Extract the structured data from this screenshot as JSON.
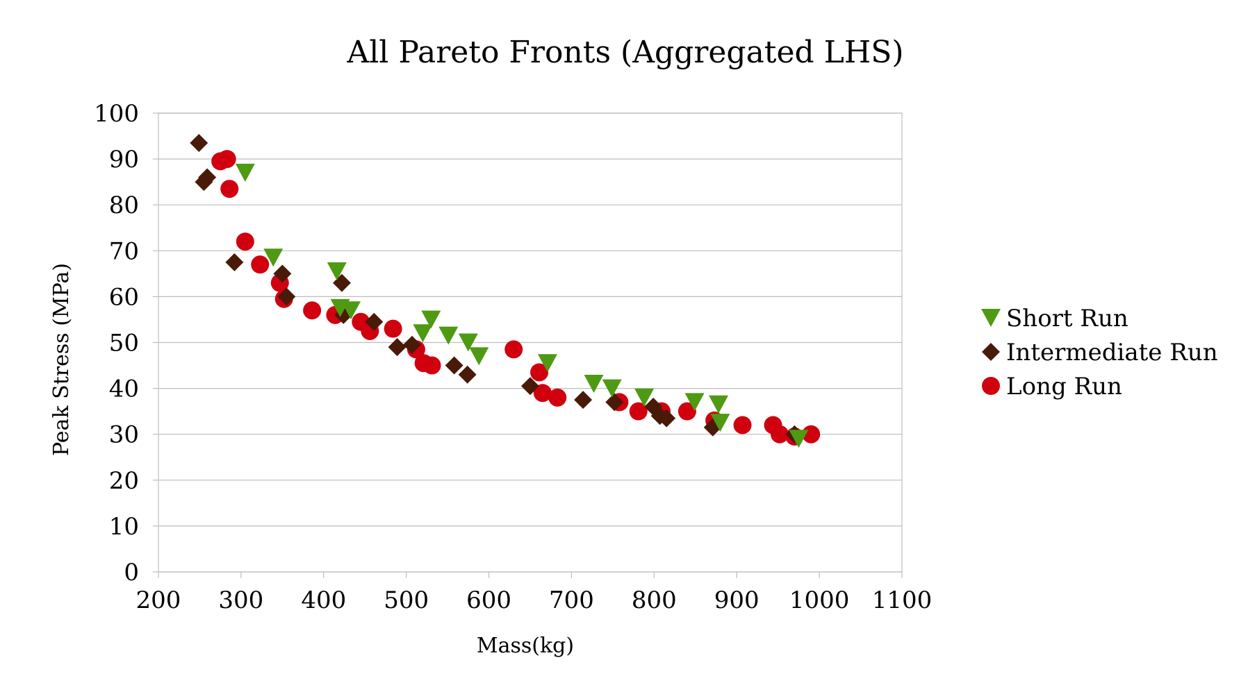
{
  "chart_data": {
    "type": "scatter",
    "title": "All Pareto Fronts (Aggregated LHS)",
    "xlabel": "Mass(kg)",
    "ylabel": "Peak Stress (MPa)",
    "xlim": [
      200,
      1100
    ],
    "ylim": [
      0,
      100
    ],
    "xticks": [
      200,
      300,
      400,
      500,
      600,
      700,
      800,
      900,
      1000,
      1100
    ],
    "yticks": [
      0,
      10,
      20,
      30,
      40,
      50,
      60,
      70,
      80,
      90,
      100
    ],
    "grid": true,
    "legend_position": "right",
    "series": [
      {
        "name": "Short Run",
        "marker": "triangle-down",
        "color": "#4e9a12",
        "points": [
          [
            305,
            87
          ],
          [
            339,
            68.5
          ],
          [
            416,
            65.5
          ],
          [
            420,
            57.5
          ],
          [
            433,
            57
          ],
          [
            520,
            52
          ],
          [
            530,
            55
          ],
          [
            551,
            51.5
          ],
          [
            575,
            50
          ],
          [
            588,
            47
          ],
          [
            671,
            45.5
          ],
          [
            727,
            41
          ],
          [
            749,
            40
          ],
          [
            788,
            38
          ],
          [
            849,
            37
          ],
          [
            878,
            36.5
          ],
          [
            880,
            32.5
          ],
          [
            975,
            29
          ]
        ]
      },
      {
        "name": "Intermediate Run",
        "marker": "diamond",
        "color": "#4a1a08",
        "points": [
          [
            249,
            93.5
          ],
          [
            255,
            85
          ],
          [
            259,
            86
          ],
          [
            292,
            67.5
          ],
          [
            350,
            65
          ],
          [
            355,
            60
          ],
          [
            422,
            63
          ],
          [
            424,
            56
          ],
          [
            461,
            54.5
          ],
          [
            489,
            49
          ],
          [
            507,
            49.5
          ],
          [
            558,
            45
          ],
          [
            574,
            43
          ],
          [
            650,
            40.5
          ],
          [
            714,
            37.5
          ],
          [
            752,
            37
          ],
          [
            799,
            36
          ],
          [
            807,
            34
          ],
          [
            815,
            33.5
          ],
          [
            871,
            31.5
          ],
          [
            970,
            30
          ]
        ]
      },
      {
        "name": "Long Run",
        "marker": "circle",
        "color": "#d0000f",
        "points": [
          [
            275,
            89.5
          ],
          [
            283,
            90
          ],
          [
            286,
            83.5
          ],
          [
            305,
            72
          ],
          [
            323,
            67
          ],
          [
            347,
            63
          ],
          [
            352,
            59.5
          ],
          [
            386,
            57
          ],
          [
            414,
            56
          ],
          [
            445,
            54.5
          ],
          [
            456,
            52.5
          ],
          [
            484,
            53
          ],
          [
            512,
            48.5
          ],
          [
            521,
            45.5
          ],
          [
            531,
            45
          ],
          [
            630,
            48.5
          ],
          [
            661,
            43.5
          ],
          [
            665,
            39
          ],
          [
            683,
            38
          ],
          [
            758,
            37
          ],
          [
            781,
            35
          ],
          [
            809,
            35
          ],
          [
            840,
            35
          ],
          [
            873,
            33
          ],
          [
            907,
            32
          ],
          [
            944,
            32
          ],
          [
            952,
            30
          ],
          [
            970,
            29.5
          ],
          [
            990,
            30
          ]
        ]
      }
    ]
  }
}
